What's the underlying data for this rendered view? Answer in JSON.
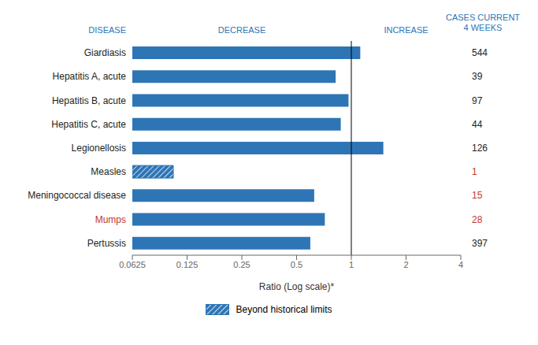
{
  "chart_data": {
    "type": "bar",
    "orientation": "horizontal",
    "log": "x",
    "categories": [
      "Giardiasis",
      "Hepatitis A, acute",
      "Hepatitis B, acute",
      "Hepatitis C, acute",
      "Legionellosis",
      "Measles",
      "Meningococcal disease",
      "Mumps",
      "Pertussis"
    ],
    "values": [
      1.12,
      0.82,
      0.965,
      0.875,
      1.5,
      0.105,
      0.625,
      0.715,
      0.595
    ],
    "color": "#2e75b6",
    "xlim": [
      0.0625,
      4.0
    ],
    "xticks": [
      0.0625,
      0.125,
      0.25,
      0.5,
      1.0,
      2.0,
      4.0
    ],
    "xlabel": "Ratio (Log scale)*",
    "category_colors": [
      "#231f20",
      "#231f20",
      "#231f20",
      "#231f20",
      "#231f20",
      "#231f20",
      "#231f20",
      "#c0392b",
      "#231f20"
    ],
    "cases": [
      544,
      39,
      97,
      44,
      126,
      1,
      15,
      28,
      397
    ],
    "cases_colors": [
      "#231f20",
      "#231f20",
      "#231f20",
      "#231f20",
      "#231f20",
      "#c0392b",
      "#c0392b",
      "#c0392b",
      "#231f20"
    ],
    "hatched": [
      false,
      false,
      false,
      false,
      false,
      true,
      false,
      false,
      false
    ],
    "legend_label": "Beyond historical limits",
    "legend": "bottom",
    "annotations": [
      "DISEASE",
      "DECREASE",
      "INCREASE",
      "CASES CURRENT\n4 WEEKS"
    ],
    "annotation_color": "#2e75b6",
    "reference_x": 1.0,
    "grid": false
  }
}
